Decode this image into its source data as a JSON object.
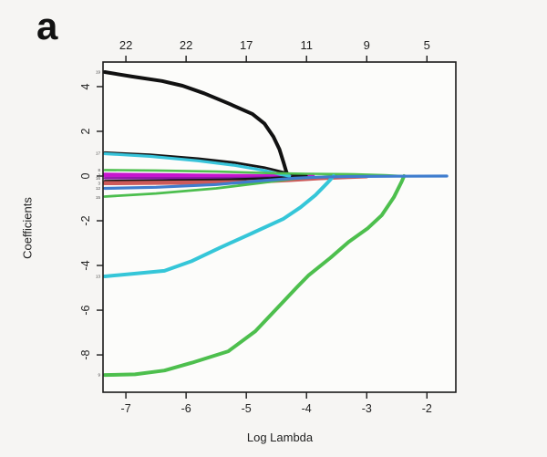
{
  "figure": {
    "panel_label": "a",
    "background": "#f6f5f3",
    "plot_background": "#fcfcfa",
    "frame_color": "#1a1a1a"
  },
  "chart_data": {
    "type": "line",
    "title": "",
    "xlabel": "Log Lambda",
    "ylabel": "Coefficients",
    "xlim": [
      -7.38,
      -1.52
    ],
    "ylim": [
      -9.67,
      5.1
    ],
    "grid": false,
    "legend": "none",
    "x_ticks": [
      -7,
      -6,
      -5,
      -4,
      -3,
      -2
    ],
    "y_ticks": [
      4,
      2,
      0,
      -2,
      -4,
      -6,
      -8
    ],
    "top_axis_labels": [
      "22",
      "22",
      "17",
      "11",
      "9",
      "5"
    ],
    "curve_labels": [
      {
        "text": "19",
        "y": 4.65
      },
      {
        "text": "17",
        "y": 1.02
      },
      {
        "text": "8",
        "y": 0.27
      },
      {
        "text": "2",
        "y": 0.05
      },
      {
        "text": "16",
        "y": -0.1
      },
      {
        "text": "3",
        "y": -0.32
      },
      {
        "text": "12",
        "y": -0.55
      },
      {
        "text": "15",
        "y": -0.95
      },
      {
        "text": "13",
        "y": -4.49
      },
      {
        "text": "9",
        "y": -8.9
      }
    ],
    "series": [
      {
        "name": "magenta-band",
        "color": "#c616ce",
        "width": 5,
        "points": [
          [
            -7.35,
            0.05
          ],
          [
            -6.5,
            0.03
          ],
          [
            -5.5,
            0.0
          ],
          [
            -4.7,
            -0.02
          ],
          [
            -4.3,
            -0.02
          ],
          [
            -3.9,
            0.0
          ]
        ]
      },
      {
        "name": "purple-line",
        "color": "#8d18a8",
        "width": 2.5,
        "points": [
          [
            -7.35,
            -0.1
          ],
          [
            -6.2,
            -0.1
          ],
          [
            -5.0,
            -0.08
          ],
          [
            -4.4,
            -0.04
          ],
          [
            -4.1,
            0.0
          ]
        ]
      },
      {
        "name": "black-near-zero",
        "color": "#141414",
        "width": 2.5,
        "points": [
          [
            -7.35,
            -0.22
          ],
          [
            -6.4,
            -0.2
          ],
          [
            -5.3,
            -0.16
          ],
          [
            -4.6,
            -0.1
          ],
          [
            -4.2,
            -0.03
          ],
          [
            -4.0,
            0.0
          ]
        ]
      },
      {
        "name": "crimson-band",
        "color": "#cd5a5a",
        "width": 4.5,
        "points": [
          [
            -7.35,
            -0.32
          ],
          [
            -6.2,
            -0.3
          ],
          [
            -5.0,
            -0.27
          ],
          [
            -4.3,
            -0.18
          ],
          [
            -3.8,
            -0.1
          ],
          [
            -3.3,
            -0.04
          ],
          [
            -3.0,
            -0.01
          ]
        ]
      },
      {
        "name": "black-large",
        "color": "#111111",
        "width": 4,
        "points": [
          [
            -7.35,
            4.65
          ],
          [
            -6.9,
            4.45
          ],
          [
            -6.4,
            4.25
          ],
          [
            -6.06,
            4.04
          ],
          [
            -5.7,
            3.7
          ],
          [
            -5.3,
            3.25
          ],
          [
            -4.9,
            2.78
          ],
          [
            -4.7,
            2.35
          ],
          [
            -4.55,
            1.76
          ],
          [
            -4.45,
            1.2
          ],
          [
            -4.38,
            0.6
          ],
          [
            -4.32,
            0.05
          ],
          [
            -4.3,
            0.0
          ]
        ]
      },
      {
        "name": "black-medium",
        "color": "#161616",
        "width": 2.8,
        "points": [
          [
            -7.35,
            1.05
          ],
          [
            -6.6,
            0.95
          ],
          [
            -5.8,
            0.78
          ],
          [
            -5.2,
            0.6
          ],
          [
            -4.7,
            0.38
          ],
          [
            -4.35,
            0.15
          ],
          [
            -4.15,
            0.02
          ],
          [
            -4.0,
            0.0
          ]
        ]
      },
      {
        "name": "cyan-upper",
        "color": "#38c4da",
        "width": 3.2,
        "points": [
          [
            -7.35,
            1.0
          ],
          [
            -6.6,
            0.88
          ],
          [
            -5.8,
            0.68
          ],
          [
            -5.2,
            0.48
          ],
          [
            -4.7,
            0.25
          ],
          [
            -4.45,
            0.08
          ],
          [
            -4.28,
            0.0
          ]
        ]
      },
      {
        "name": "green-upper",
        "color": "#50c050",
        "width": 2.6,
        "points": [
          [
            -7.35,
            0.27
          ],
          [
            -6.5,
            0.25
          ],
          [
            -5.5,
            0.2
          ],
          [
            -4.6,
            0.13
          ],
          [
            -4.0,
            0.1
          ],
          [
            -3.2,
            0.08
          ],
          [
            -2.7,
            0.04
          ],
          [
            -2.4,
            0.0
          ]
        ]
      },
      {
        "name": "green-lower",
        "color": "#4cbe4e",
        "width": 2.8,
        "points": [
          [
            -7.35,
            -0.92
          ],
          [
            -6.5,
            -0.78
          ],
          [
            -5.5,
            -0.55
          ],
          [
            -4.8,
            -0.32
          ],
          [
            -4.2,
            -0.12
          ],
          [
            -3.7,
            -0.03
          ],
          [
            -3.5,
            0.0
          ]
        ]
      },
      {
        "name": "cyan-large",
        "color": "#35c6d8",
        "width": 4,
        "points": [
          [
            -7.35,
            -4.49
          ],
          [
            -6.8,
            -4.35
          ],
          [
            -6.36,
            -4.24
          ],
          [
            -5.9,
            -3.8
          ],
          [
            -5.45,
            -3.22
          ],
          [
            -4.9,
            -2.55
          ],
          [
            -4.39,
            -1.92
          ],
          [
            -4.1,
            -1.4
          ],
          [
            -3.85,
            -0.85
          ],
          [
            -3.65,
            -0.3
          ],
          [
            -3.55,
            0.0
          ]
        ]
      },
      {
        "name": "green-large",
        "color": "#4dbf4d",
        "width": 4,
        "points": [
          [
            -7.35,
            -8.9
          ],
          [
            -6.85,
            -8.87
          ],
          [
            -6.36,
            -8.7
          ],
          [
            -5.9,
            -8.35
          ],
          [
            -5.3,
            -7.84
          ],
          [
            -4.85,
            -6.94
          ],
          [
            -4.39,
            -5.63
          ],
          [
            -4.15,
            -4.95
          ],
          [
            -3.97,
            -4.45
          ],
          [
            -3.6,
            -3.65
          ],
          [
            -3.3,
            -2.95
          ],
          [
            -2.98,
            -2.33
          ],
          [
            -2.75,
            -1.75
          ],
          [
            -2.55,
            -0.95
          ],
          [
            -2.42,
            -0.25
          ],
          [
            -2.38,
            0.0
          ]
        ]
      },
      {
        "name": "blue-line",
        "color": "#3f7dce",
        "width": 3.2,
        "points": [
          [
            -7.35,
            -0.55
          ],
          [
            -6.5,
            -0.5
          ],
          [
            -5.5,
            -0.38
          ],
          [
            -4.8,
            -0.22
          ],
          [
            -4.2,
            -0.1
          ],
          [
            -3.8,
            -0.05
          ],
          [
            -3.3,
            -0.02
          ],
          [
            -2.5,
            -0.01
          ],
          [
            -1.67,
            0.0
          ]
        ]
      }
    ]
  }
}
